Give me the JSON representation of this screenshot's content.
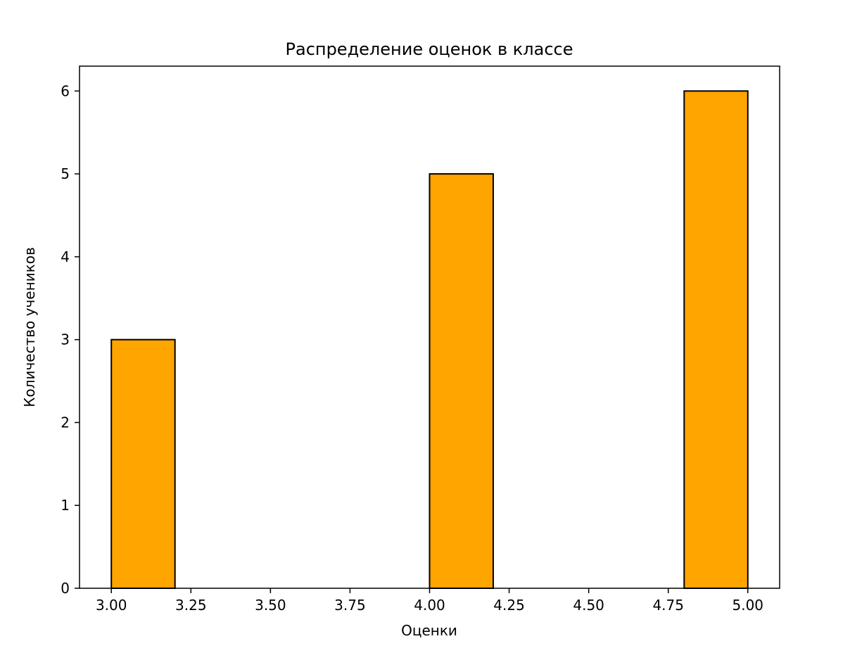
{
  "chart_data": {
    "type": "bar",
    "title": "Распределение оценок в классе",
    "xlabel": "Оценки",
    "ylabel": "Количество учеников",
    "bars": [
      {
        "x_start": 3.0,
        "x_end": 3.2,
        "value": 3
      },
      {
        "x_start": 4.0,
        "x_end": 4.2,
        "value": 5
      },
      {
        "x_start": 4.8,
        "x_end": 5.0,
        "value": 6
      }
    ],
    "x_tick_values": [
      3.0,
      3.25,
      3.5,
      3.75,
      4.0,
      4.25,
      4.5,
      4.75,
      5.0
    ],
    "x_tick_labels": [
      "3.00",
      "3.25",
      "3.50",
      "3.75",
      "4.00",
      "4.25",
      "4.50",
      "4.75",
      "5.00"
    ],
    "y_tick_values": [
      0,
      1,
      2,
      3,
      4,
      5,
      6
    ],
    "y_tick_labels": [
      "0",
      "1",
      "2",
      "3",
      "4",
      "5",
      "6"
    ],
    "xlim": [
      2.9,
      5.1
    ],
    "ylim": [
      0,
      6.3
    ],
    "bar_color": "#FFA500",
    "bar_edge_color": "#000000",
    "axis_color": "#000000",
    "background_color": "#FFFFFF",
    "grid": false,
    "legend": null
  }
}
